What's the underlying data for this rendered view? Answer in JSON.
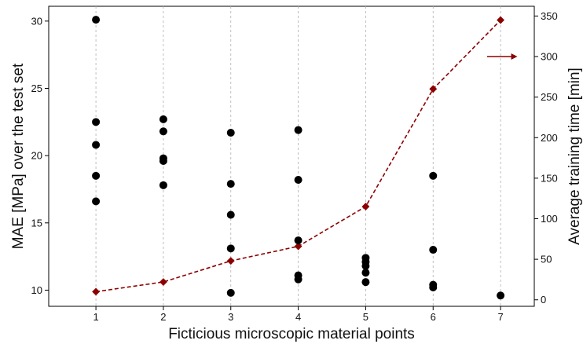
{
  "chart_data": {
    "type": "scatter",
    "xlabel": "Ficticious microscopic material points",
    "ylabel": "MAE [MPa] over the test set",
    "y2label": "Average training time [min]",
    "xlim": [
      0.3,
      7.5
    ],
    "ylim": [
      8.8,
      31.1
    ],
    "y2lim": [
      -8,
      362
    ],
    "x_ticks": [
      1,
      2,
      3,
      4,
      5,
      6,
      7
    ],
    "y_ticks": [
      10,
      15,
      20,
      25,
      30
    ],
    "y2_ticks": [
      0,
      50,
      100,
      150,
      200,
      250,
      300,
      350
    ],
    "grid": "vertical dashed at x ticks",
    "series": [
      {
        "axis": "left",
        "kind": "scatter",
        "color": "#000000",
        "points": [
          [
            1,
            30.1
          ],
          [
            1,
            22.5
          ],
          [
            1,
            20.8
          ],
          [
            1,
            18.5
          ],
          [
            1,
            16.6
          ],
          [
            2,
            22.7
          ],
          [
            2,
            21.8
          ],
          [
            2,
            19.8
          ],
          [
            2,
            19.6
          ],
          [
            2,
            17.8
          ],
          [
            3,
            21.7
          ],
          [
            3,
            17.9
          ],
          [
            3,
            15.6
          ],
          [
            3,
            13.1
          ],
          [
            3,
            9.8
          ],
          [
            4,
            21.9
          ],
          [
            4,
            18.2
          ],
          [
            4,
            13.7
          ],
          [
            4,
            11.1
          ],
          [
            4,
            10.8
          ],
          [
            5,
            12.4
          ],
          [
            5,
            12.1
          ],
          [
            5,
            11.8
          ],
          [
            5,
            11.3
          ],
          [
            5,
            10.6
          ],
          [
            6,
            18.5
          ],
          [
            6,
            13.0
          ],
          [
            6,
            10.4
          ],
          [
            6,
            10.2
          ],
          [
            7,
            9.6
          ]
        ]
      },
      {
        "axis": "right",
        "kind": "line",
        "color": "#8b0000",
        "marker": "diamond",
        "linestyle": "dashed",
        "points": [
          [
            1,
            10
          ],
          [
            2,
            22
          ],
          [
            3,
            48
          ],
          [
            4,
            66
          ],
          [
            5,
            115
          ],
          [
            6,
            260
          ],
          [
            7,
            345
          ]
        ]
      }
    ],
    "annotations": [
      {
        "type": "arrow",
        "direction": "right",
        "color": "#8b0000",
        "at": [
          6.8,
          7.25
        ],
        "y2": 300
      }
    ]
  }
}
